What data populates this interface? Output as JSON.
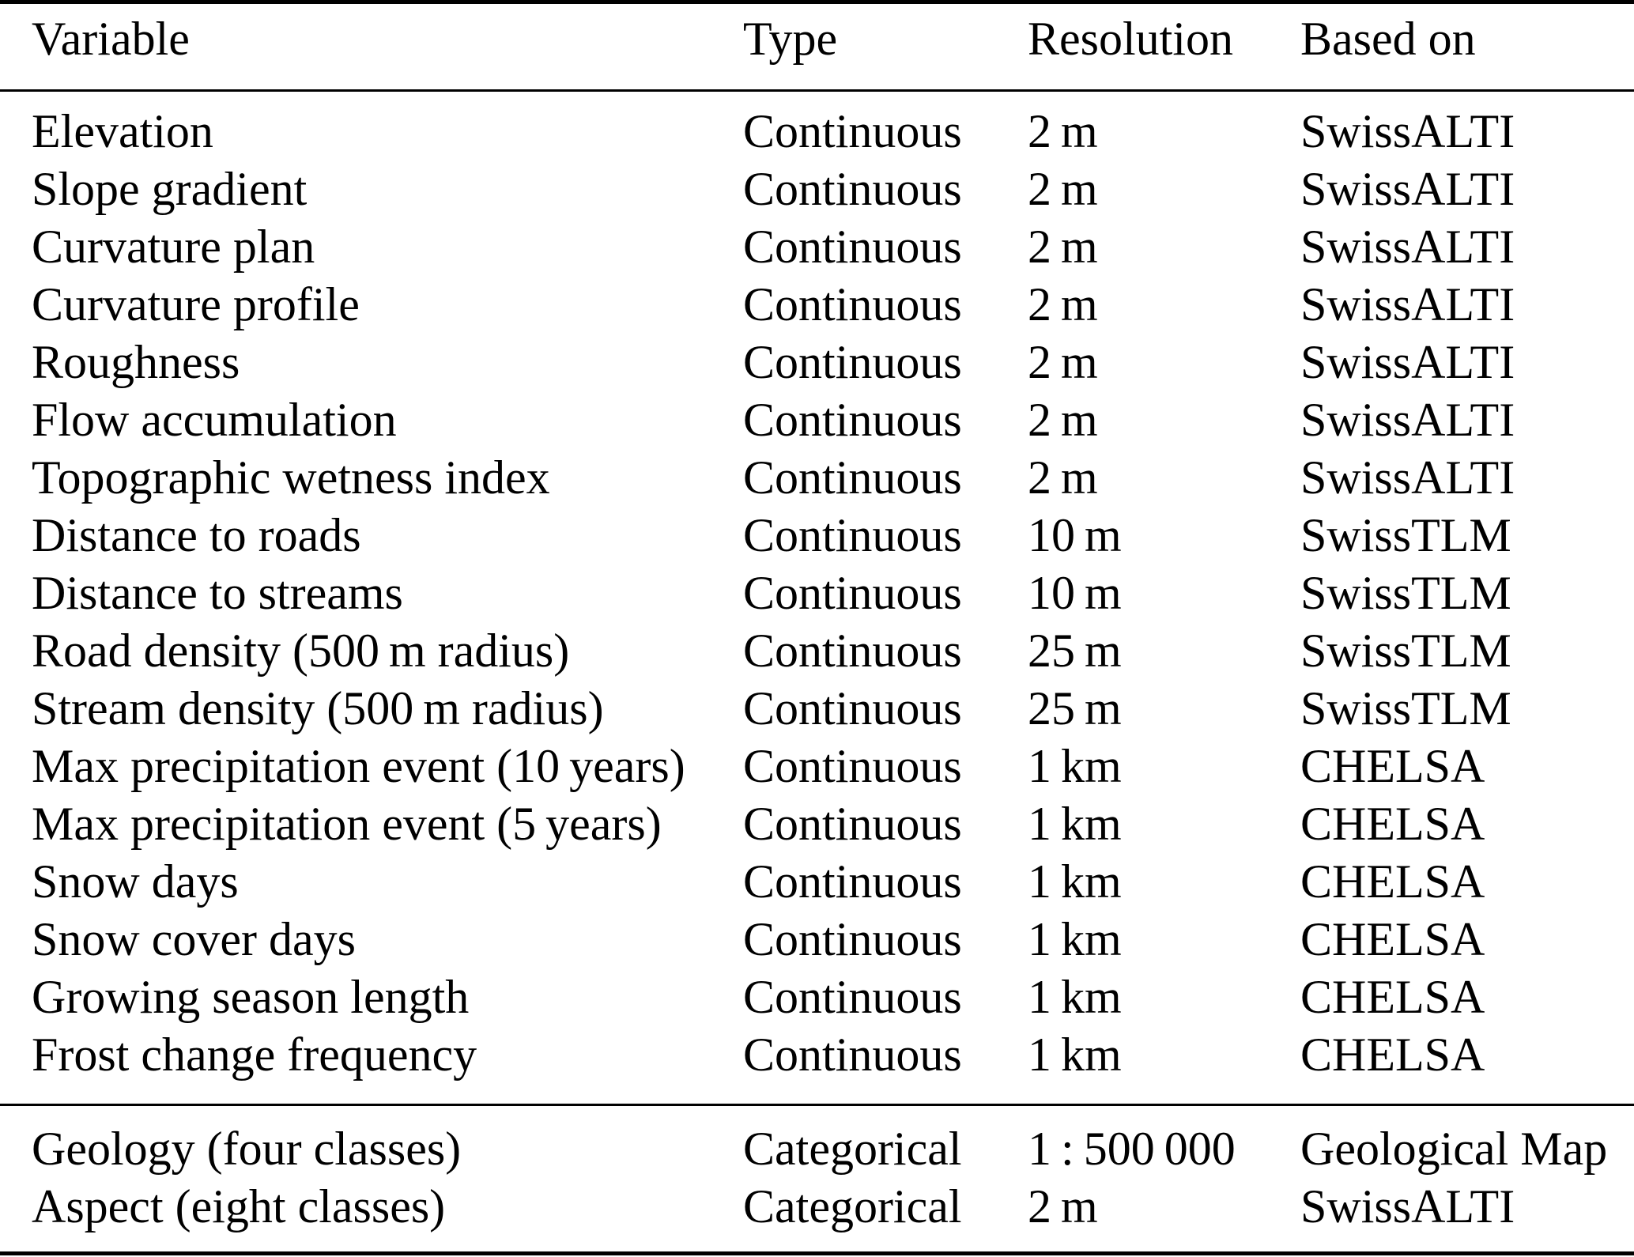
{
  "table": {
    "columns": {
      "variable": "Variable",
      "type": "Type",
      "resolution": "Resolution",
      "based_on": "Based on"
    },
    "rows": [
      {
        "variable": "Elevation",
        "type": "Continuous",
        "resolution": "2 m",
        "based_on": "SwissALTI"
      },
      {
        "variable": "Slope gradient",
        "type": "Continuous",
        "resolution": "2 m",
        "based_on": "SwissALTI"
      },
      {
        "variable": "Curvature plan",
        "type": "Continuous",
        "resolution": "2 m",
        "based_on": "SwissALTI"
      },
      {
        "variable": "Curvature profile",
        "type": "Continuous",
        "resolution": "2 m",
        "based_on": "SwissALTI"
      },
      {
        "variable": "Roughness",
        "type": "Continuous",
        "resolution": "2 m",
        "based_on": "SwissALTI"
      },
      {
        "variable": "Flow accumulation",
        "type": "Continuous",
        "resolution": "2 m",
        "based_on": "SwissALTI"
      },
      {
        "variable": "Topographic wetness index",
        "type": "Continuous",
        "resolution": "2 m",
        "based_on": "SwissALTI"
      },
      {
        "variable": "Distance to roads",
        "type": "Continuous",
        "resolution": "10 m",
        "based_on": "SwissTLM"
      },
      {
        "variable": "Distance to streams",
        "type": "Continuous",
        "resolution": "10 m",
        "based_on": "SwissTLM"
      },
      {
        "variable": "Road density (500 m radius)",
        "type": "Continuous",
        "resolution": "25 m",
        "based_on": "SwissTLM"
      },
      {
        "variable": "Stream density (500 m radius)",
        "type": "Continuous",
        "resolution": "25 m",
        "based_on": "SwissTLM"
      },
      {
        "variable": "Max precipitation event (10 years)",
        "type": "Continuous",
        "resolution": "1 km",
        "based_on": "CHELSA"
      },
      {
        "variable": "Max precipitation event (5 years)",
        "type": "Continuous",
        "resolution": "1 km",
        "based_on": "CHELSA"
      },
      {
        "variable": "Snow days",
        "type": "Continuous",
        "resolution": "1 km",
        "based_on": "CHELSA"
      },
      {
        "variable": "Snow cover days",
        "type": "Continuous",
        "resolution": "1 km",
        "based_on": "CHELSA"
      },
      {
        "variable": "Growing season length",
        "type": "Continuous",
        "resolution": "1 km",
        "based_on": "CHELSA"
      },
      {
        "variable": "Frost change frequency",
        "type": "Continuous",
        "resolution": "1 km",
        "based_on": "CHELSA"
      },
      {
        "variable": "Geology (four classes)",
        "type": "Categorical",
        "resolution": "1 : 500 000",
        "based_on": "Geological Map"
      },
      {
        "variable": "Aspect (eight classes)",
        "type": "Categorical",
        "resolution": "2 m",
        "based_on": "SwissALTI"
      }
    ],
    "colors": {
      "text": "#000000",
      "background": "#ffffff",
      "rule": "#000000"
    }
  }
}
